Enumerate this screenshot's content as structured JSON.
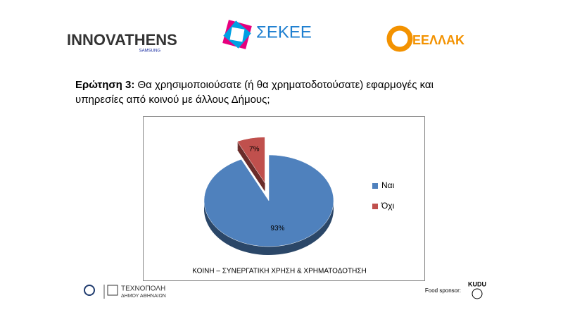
{
  "header": {
    "logos": [
      "INNOVATHENS",
      "SAMSUNG",
      "ΣΕΚΕΕ",
      "ΕΕΛΛΑΚ"
    ]
  },
  "question": {
    "label": "Ερώτηση 3:",
    "text": "Θα χρησιμοποιούσατε (ή θα χρηματοδοτούσατε) εφαρμογές και υπηρεσίες από κοινού με άλλους Δήμους;"
  },
  "chart_data": {
    "type": "pie",
    "categories": [
      "Ναι",
      "Όχι"
    ],
    "values": [
      93,
      7
    ],
    "value_labels": [
      "93%",
      "7%"
    ],
    "colors": [
      "#4f81bd",
      "#c0504d"
    ],
    "caption": "ΚΟΙΝΗ – ΣΥΝΕΡΓΑΤΙΚΗ ΧΡΗΣΗ & ΧΡΗΜΑΤΟΔΟΤΗΣΗ",
    "legend": "right"
  },
  "footer": {
    "left": [
      "ΤΕΧΝΟΠΟΛΗ",
      "ΔΗΜΟΥ ΑΘΗΝΑΙΩΝ"
    ],
    "sponsor_label": "Food sponsor:",
    "sponsor": "KUDU"
  }
}
